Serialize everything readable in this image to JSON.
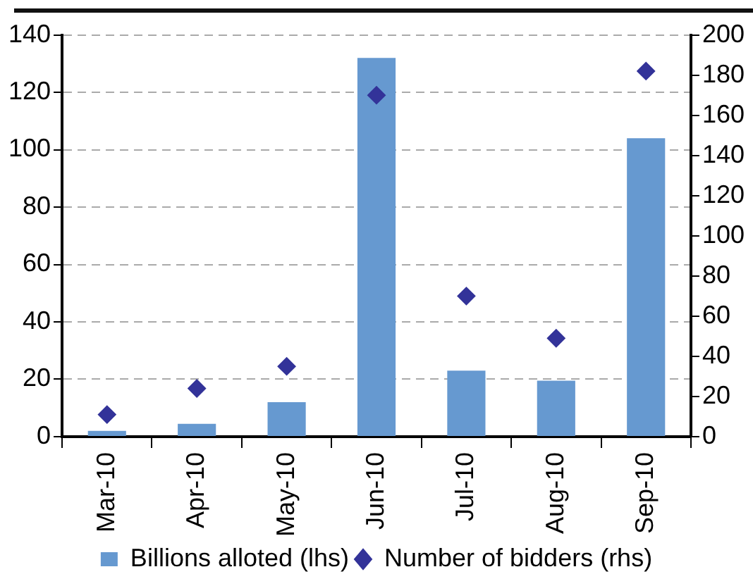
{
  "chart_data": {
    "type": "bar",
    "categories": [
      "Mar-10",
      "Apr-10",
      "May-10",
      "Jun-10",
      "Jul-10",
      "Aug-10",
      "Sep-10"
    ],
    "series": [
      {
        "name": "Billions alloted (lhs)",
        "color": "#6699d0",
        "values": [
          2,
          4.5,
          12,
          132,
          23,
          19.5,
          104
        ]
      },
      {
        "name": "Number of bidders (rhs)",
        "type": "scatter",
        "axis": "y2",
        "marker": "diamond",
        "color": "#333399",
        "values": [
          11,
          24,
          35,
          170,
          70,
          49,
          182
        ]
      }
    ],
    "ylim": [
      0,
      140
    ],
    "yticks": [
      0,
      20,
      40,
      60,
      80,
      100,
      120,
      140
    ],
    "y2lim": [
      0,
      200
    ],
    "y2ticks": [
      0,
      20,
      40,
      60,
      80,
      100,
      120,
      140,
      160,
      180,
      200
    ],
    "grid": "y",
    "legend": "bottom"
  }
}
